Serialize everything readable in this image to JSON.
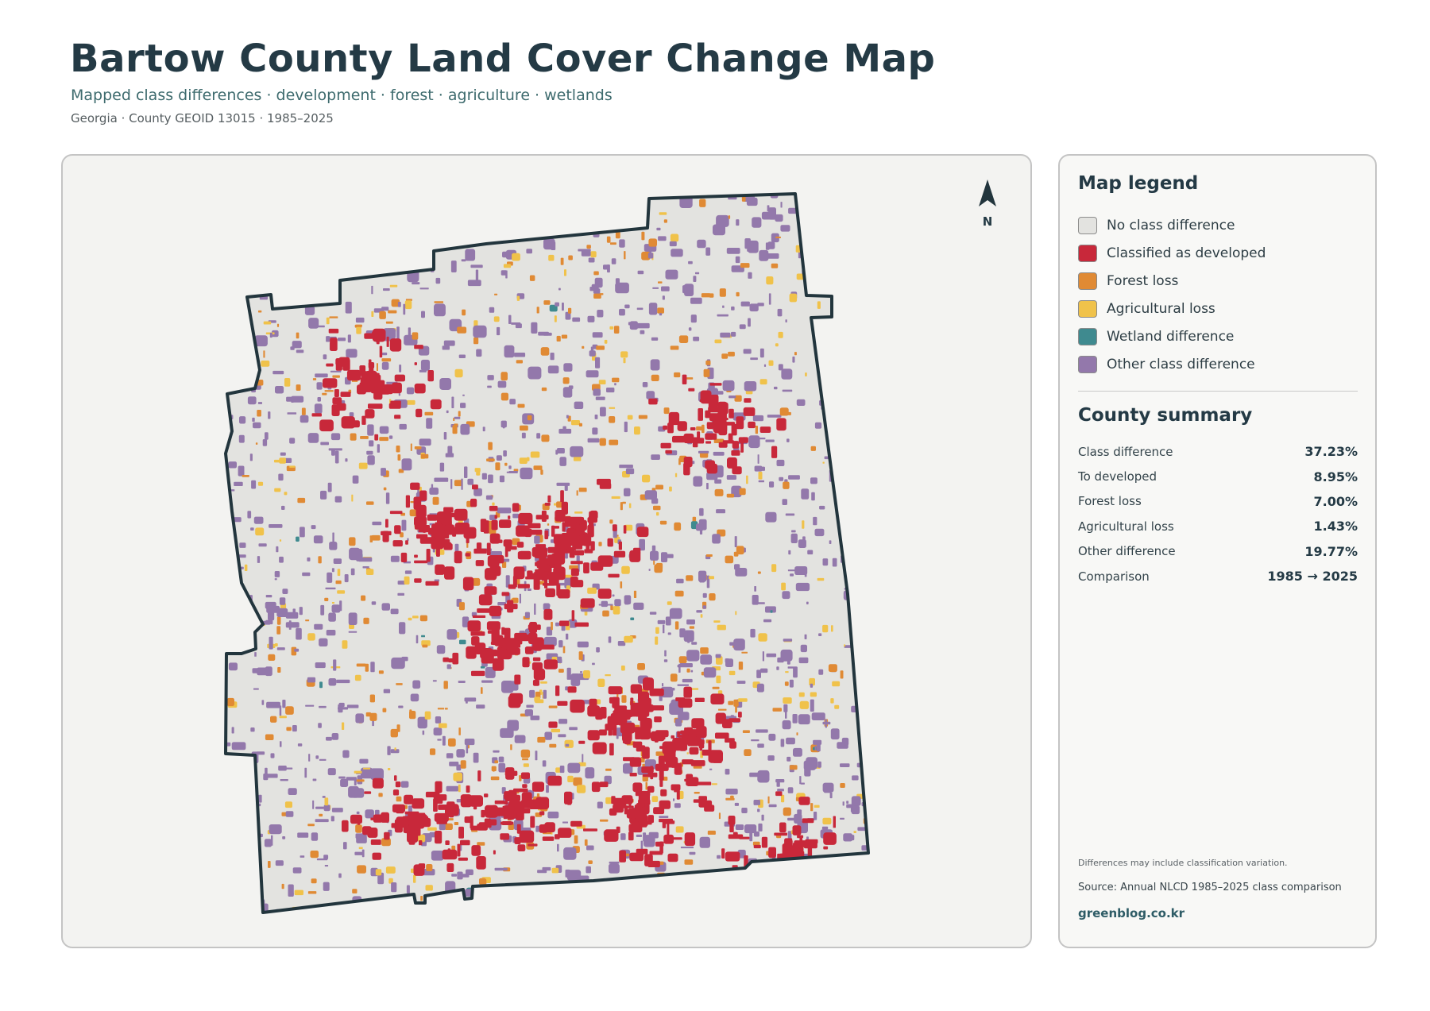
{
  "header": {
    "title": "Bartow County Land Cover Change Map",
    "subtitle": "Mapped class differences · development · forest · agriculture · wetlands",
    "meta": "Georgia · County GEOID 13015 · 1985–2025"
  },
  "map": {
    "north_label": "N",
    "colors": {
      "background": "#e3e3e0",
      "outline": "#22353d",
      "developed": "#c8283a",
      "forest_loss": "#e08a34",
      "agricultural_loss": "#f0c24a",
      "wetland": "#3f8a8f",
      "other": "#9378ab"
    }
  },
  "legend": {
    "title": "Map legend",
    "items": [
      {
        "label": "No class difference",
        "color": "#e3e3e0"
      },
      {
        "label": "Classified as developed",
        "color": "#c8283a"
      },
      {
        "label": "Forest loss",
        "color": "#e08a34"
      },
      {
        "label": "Agricultural loss",
        "color": "#f0c24a"
      },
      {
        "label": "Wetland difference",
        "color": "#3f8a8f"
      },
      {
        "label": "Other class difference",
        "color": "#9378ab"
      }
    ]
  },
  "summary": {
    "title": "County summary",
    "rows": [
      {
        "label": "Class difference",
        "value": "37.23%"
      },
      {
        "label": "To developed",
        "value": "8.95%"
      },
      {
        "label": "Forest loss",
        "value": "7.00%"
      },
      {
        "label": "Agricultural loss",
        "value": "1.43%"
      },
      {
        "label": "Other difference",
        "value": "19.77%"
      },
      {
        "label": "Comparison",
        "value": "1985 → 2025"
      }
    ]
  },
  "footer": {
    "note": "Differences may include classification variation.",
    "source": "Source: Annual NLCD 1985–2025 class comparison",
    "site": "greenblog.co.kr"
  }
}
